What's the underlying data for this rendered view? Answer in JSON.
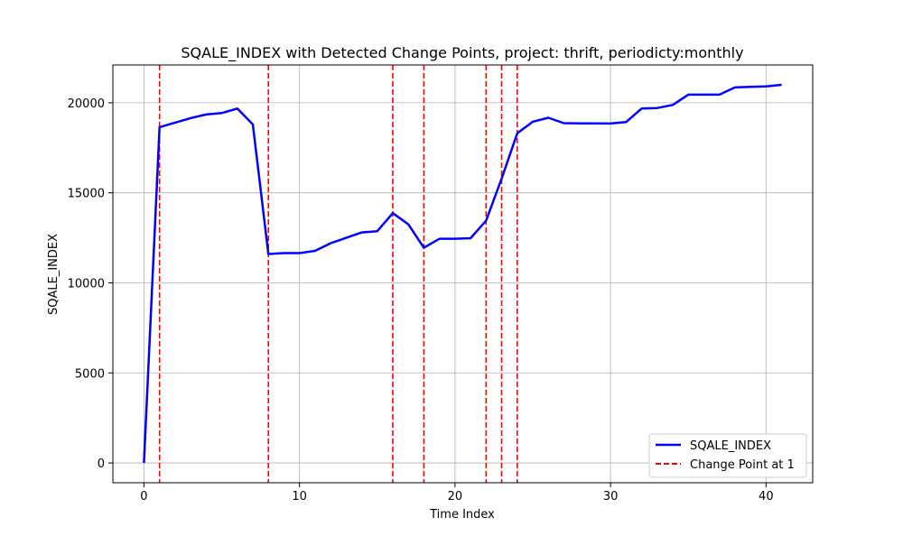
{
  "chart_data": {
    "type": "line",
    "title": "SQALE_INDEX with Detected Change Points, project: thrift, periodicty:monthly",
    "xlabel": "Time Index",
    "ylabel": "SQALE_INDEX",
    "xlim": [
      -2,
      43
    ],
    "ylim": [
      -1100,
      22100
    ],
    "x_ticks": [
      0,
      10,
      20,
      30,
      40
    ],
    "y_ticks": [
      0,
      5000,
      10000,
      15000,
      20000
    ],
    "grid": true,
    "legend_position": "lower right",
    "series": [
      {
        "name": "SQALE_INDEX",
        "color": "#0000ff",
        "x": [
          0,
          1,
          2,
          3,
          4,
          5,
          6,
          7,
          8,
          9,
          10,
          11,
          12,
          13,
          14,
          15,
          16,
          17,
          18,
          19,
          20,
          21,
          22,
          23,
          24,
          25,
          26,
          27,
          28,
          29,
          30,
          31,
          32,
          33,
          34,
          35,
          36,
          37,
          38,
          39,
          40,
          41
        ],
        "values": [
          0,
          18650,
          18900,
          19150,
          19350,
          19430,
          19680,
          18800,
          11600,
          11650,
          11650,
          11780,
          12200,
          12500,
          12800,
          12870,
          13870,
          13250,
          11950,
          12450,
          12450,
          12480,
          13450,
          15800,
          18300,
          18950,
          19170,
          18870,
          18860,
          18860,
          18850,
          18930,
          19680,
          19710,
          19880,
          20450,
          20450,
          20450,
          20850,
          20880,
          20910,
          21000
        ]
      }
    ],
    "change_points": {
      "label": "Change Point at 1",
      "color": "#ff0000",
      "x": [
        1,
        8,
        16,
        18,
        22,
        23,
        24
      ]
    }
  }
}
